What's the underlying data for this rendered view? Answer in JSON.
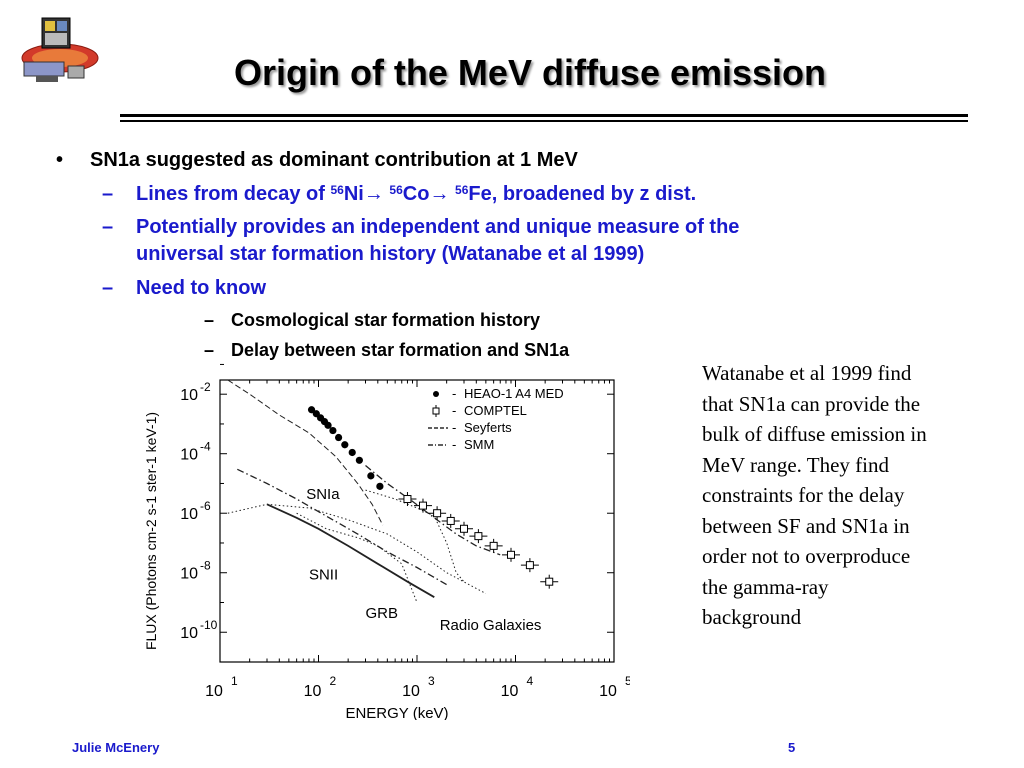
{
  "title": "Origin of the MeV diffuse emission",
  "bullets": {
    "l1_mark": "•",
    "l1": "SN1a suggested as dominant contribution at 1 MeV",
    "dash": "–",
    "l2a_pre": "Lines from decay of ",
    "l2a_s1": "56",
    "l2a_e1": "Ni",
    "l2a_arrow1": "→",
    "l2a_s2": "56",
    "l2a_e2": "Co",
    "l2a_arrow2": "→",
    "l2a_s3": "56",
    "l2a_e3": "Fe, broadened by z dist.",
    "l2b_1": "Potentially provides an independent and unique measure of the",
    "l2b_2": "universal star formation history (Watanabe et al 1999)",
    "l2c": "Need to know",
    "l3a": "Cosmological star formation history",
    "l3b": "Delay between star formation and SN1a"
  },
  "caption_lines": [
    "Watanabe et al 1999 find",
    "that SN1a can provide the",
    "bulk of diffuse emission in",
    "MeV range. They find",
    "constraints for the delay",
    "between SF and SN1a in",
    "order not to overproduce",
    "the gamma-ray",
    "background"
  ],
  "footer": {
    "name": "Julie McEnery",
    "page": "5"
  },
  "chart_data": {
    "type": "scatter",
    "xlabel": "ENERGY  (keV)",
    "ylabel": "FLUX  (Photons cm-2 s-1 ster-1 keV-1)",
    "x_scale": "log",
    "y_scale": "log",
    "xlim": [
      10,
      100000
    ],
    "ylim": [
      1e-11,
      0.03
    ],
    "x_ticks": [
      {
        "value": 10,
        "base": "10",
        "exp": "1"
      },
      {
        "value": 100,
        "base": "10",
        "exp": "2"
      },
      {
        "value": 1000,
        "base": "10",
        "exp": "3"
      },
      {
        "value": 10000,
        "base": "10",
        "exp": "4"
      },
      {
        "value": 100000,
        "base": "10",
        "exp": "5"
      }
    ],
    "y_ticks": [
      {
        "value": 0.01,
        "base": "10",
        "exp": "-2"
      },
      {
        "value": 0.0001,
        "base": "10",
        "exp": "-4"
      },
      {
        "value": 1e-06,
        "base": "10",
        "exp": "-6"
      },
      {
        "value": 1e-08,
        "base": "10",
        "exp": "-8"
      },
      {
        "value": 1e-10,
        "base": "10",
        "exp": "-10"
      }
    ],
    "legend_position": "top-right",
    "legend": [
      {
        "label": "HEAO-1 A4 MED",
        "style": "dot"
      },
      {
        "label": "COMPTEL",
        "style": "square"
      },
      {
        "label": "Seyferts",
        "style": "dashed"
      },
      {
        "label": "SMM",
        "style": "dashdot"
      }
    ],
    "annotations": [
      {
        "text": "SNIa",
        "x": 75,
        "y": 3e-06
      },
      {
        "text": "SNII",
        "x": 80,
        "y": 6e-09
      },
      {
        "text": "GRB",
        "x": 300,
        "y": 3e-10
      },
      {
        "text": "Radio Galaxies",
        "x": 1700,
        "y": 1.2e-10
      }
    ],
    "series": [
      {
        "name": "HEAO-1 A4 MED",
        "marker": "dot",
        "x": [
          85,
          95,
          105,
          115,
          125,
          140,
          160,
          185,
          220,
          260,
          340,
          420
        ],
        "y": [
          0.003,
          0.0022,
          0.0016,
          0.0012,
          0.0009,
          0.0006,
          0.00035,
          0.0002,
          0.00011,
          6e-05,
          1.8e-05,
          8e-06
        ]
      },
      {
        "name": "COMPTEL",
        "marker": "square",
        "x": [
          800,
          1150,
          1600,
          2200,
          3000,
          4200,
          6000,
          9000,
          14000,
          22000
        ],
        "y": [
          3e-06,
          1.8e-06,
          1e-06,
          5.5e-07,
          3e-07,
          1.7e-07,
          8e-08,
          4e-08,
          1.8e-08,
          5e-09
        ]
      },
      {
        "name": "SMM",
        "marker": "dashdot-line",
        "x": [
          300,
          500,
          900,
          1500,
          2500,
          4000,
          7000
        ],
        "y": [
          4e-05,
          1e-05,
          2.5e-06,
          7e-07,
          2e-07,
          8e-08,
          4e-08
        ]
      },
      {
        "name": "Seyferts",
        "marker": "dashed-line",
        "x": [
          12,
          20,
          40,
          80,
          150,
          250,
          350,
          450
        ],
        "y": [
          0.03,
          0.01,
          0.002,
          0.0005,
          8e-05,
          1e-05,
          2e-06,
          4e-07
        ]
      },
      {
        "name": "",
        "marker": "dashdot-line",
        "x": [
          15,
          30,
          60,
          120,
          250,
          500,
          1000,
          2000
        ],
        "y": [
          3e-05,
          1e-05,
          3e-06,
          8e-07,
          2e-07,
          5e-08,
          1.5e-08,
          4e-09
        ]
      },
      {
        "name": "SNIa",
        "marker": "dotted-line",
        "x": [
          300,
          600,
          1000,
          1500,
          2000,
          2500,
          3000
        ],
        "y": [
          6e-06,
          3e-06,
          1.5e-06,
          8e-07,
          1e-07,
          1e-08,
          5e-09
        ]
      },
      {
        "name": "SNII",
        "marker": "dotted-line",
        "x": [
          60,
          120,
          250,
          400,
          700,
          1000
        ],
        "y": [
          1e-06,
          3e-07,
          1.5e-07,
          8e-08,
          2e-08,
          1e-09
        ]
      },
      {
        "name": "GRB",
        "marker": "solid-line",
        "x": [
          30,
          60,
          100,
          200,
          400,
          800,
          1500
        ],
        "y": [
          2e-06,
          7e-07,
          3e-07,
          8e-08,
          2e-08,
          5e-09,
          1.5e-09
        ]
      },
      {
        "name": "Radio Galaxies",
        "marker": "dotted-line",
        "x": [
          12,
          30,
          80,
          200,
          500,
          1000,
          2000,
          5000
        ],
        "y": [
          1e-06,
          2e-06,
          1.5e-06,
          6e-07,
          2e-07,
          5e-08,
          1e-08,
          2e-09
        ]
      }
    ]
  }
}
